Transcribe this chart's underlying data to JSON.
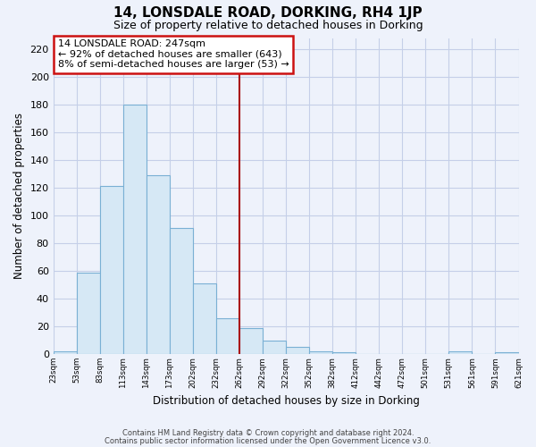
{
  "title": "14, LONSDALE ROAD, DORKING, RH4 1JP",
  "subtitle": "Size of property relative to detached houses in Dorking",
  "xlabel": "Distribution of detached houses by size in Dorking",
  "ylabel": "Number of detached properties",
  "bar_values": [
    2,
    59,
    121,
    180,
    129,
    91,
    51,
    26,
    19,
    10,
    5,
    2,
    1,
    0,
    0,
    0,
    0,
    2,
    0,
    1
  ],
  "bin_labels": [
    "23sqm",
    "53sqm",
    "83sqm",
    "113sqm",
    "143sqm",
    "173sqm",
    "202sqm",
    "232sqm",
    "262sqm",
    "292sqm",
    "322sqm",
    "352sqm",
    "382sqm",
    "412sqm",
    "442sqm",
    "472sqm",
    "501sqm",
    "531sqm",
    "561sqm",
    "591sqm",
    "621sqm"
  ],
  "bar_color": "#d6e8f5",
  "bar_edge_color": "#7ab0d4",
  "vline_color": "#aa1111",
  "annotation_title": "14 LONSDALE ROAD: 247sqm",
  "annotation_line1": "← 92% of detached houses are smaller (643)",
  "annotation_line2": "8% of semi-detached houses are larger (53) →",
  "annotation_box_color": "#ffffff",
  "annotation_box_edge": "#cc1111",
  "ylim": [
    0,
    228
  ],
  "yticks": [
    0,
    20,
    40,
    60,
    80,
    100,
    120,
    140,
    160,
    180,
    200,
    220
  ],
  "footnote1": "Contains HM Land Registry data © Crown copyright and database right 2024.",
  "footnote2": "Contains public sector information licensed under the Open Government Licence v3.0.",
  "background_color": "#eef2fb",
  "grid_color": "#c5cfe8"
}
